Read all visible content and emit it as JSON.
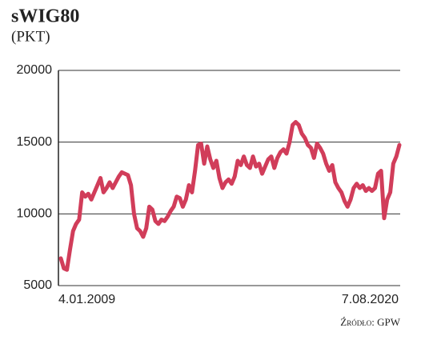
{
  "chart_data": {
    "type": "line",
    "title": "sWIG80",
    "subtitle": "(PKT)",
    "source": "Źródło: GPW",
    "categories": [
      "4.01.2009",
      null,
      null,
      null,
      null,
      null,
      null,
      null,
      null,
      null,
      null,
      null,
      null,
      null,
      null,
      null,
      null,
      null,
      null,
      null,
      null,
      null,
      null,
      null,
      null,
      null,
      null,
      null,
      null,
      null,
      null,
      null,
      null,
      null,
      null,
      null,
      null,
      null,
      null,
      null,
      null,
      null,
      null,
      null,
      null,
      null,
      null,
      null,
      null,
      null,
      null,
      null,
      null,
      null,
      null,
      null,
      null,
      null,
      null,
      null,
      null,
      null,
      null,
      null,
      null,
      null,
      null,
      null,
      null,
      null,
      null,
      null,
      null,
      null,
      null,
      null,
      null,
      null,
      null,
      null,
      null,
      null,
      null,
      null,
      null,
      null,
      null,
      null,
      null,
      null,
      null,
      null,
      null,
      null,
      null,
      null,
      null,
      null,
      null,
      null,
      null,
      null,
      null,
      null,
      null,
      null,
      null,
      null,
      null,
      null,
      null,
      "7.08.2020"
    ],
    "series": [
      {
        "name": "sWIG80",
        "color": "#d13d5a",
        "values": [
          6900,
          6200,
          6100,
          7500,
          8800,
          9300,
          9600,
          11500,
          11200,
          11400,
          11000,
          11500,
          12000,
          12500,
          11500,
          11800,
          12200,
          11800,
          12200,
          12600,
          12900,
          12800,
          12700,
          12000,
          10000,
          9000,
          8800,
          8400,
          9000,
          10500,
          10300,
          9500,
          9300,
          9600,
          9500,
          9800,
          10200,
          10500,
          11200,
          11100,
          10500,
          11000,
          12000,
          11500,
          13000,
          14800,
          14900,
          13500,
          14700,
          13800,
          13200,
          13700,
          12500,
          11800,
          12200,
          12400,
          12100,
          12600,
          13700,
          13400,
          14000,
          13400,
          13200,
          14000,
          13300,
          13500,
          12800,
          13300,
          13800,
          14000,
          13200,
          13900,
          14300,
          14500,
          14200,
          15000,
          16200,
          16400,
          16200,
          15600,
          15300,
          14800,
          14600,
          13900,
          14900,
          14600,
          14200,
          13500,
          13000,
          13400,
          12200,
          11800,
          11500,
          10900,
          10500,
          11000,
          11800,
          12100,
          11800,
          12000,
          11600,
          11800,
          11600,
          11800,
          12800,
          13000,
          9700,
          11000,
          11500,
          13500,
          14000,
          14800
        ]
      }
    ],
    "ylim": [
      5000,
      20000
    ],
    "yticks": [
      5000,
      10000,
      15000,
      20000
    ],
    "grid": true
  }
}
